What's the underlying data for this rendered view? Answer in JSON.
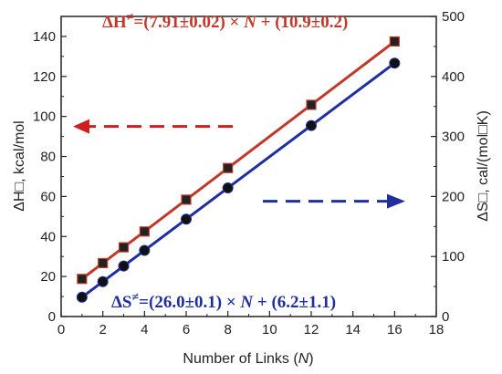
{
  "chart_data": {
    "type": "scatter",
    "x": [
      1,
      2,
      3,
      4,
      6,
      8,
      12,
      16
    ],
    "xlabel": "Number of Links (N)",
    "xlabel_main": "Number of Links (",
    "xlabel_var": "N",
    "xlabel_close": ")",
    "xlim": [
      0,
      18
    ],
    "xticks": [
      0,
      2,
      4,
      6,
      8,
      10,
      12,
      14,
      16,
      18
    ],
    "ylabel_left": "ΔH□, kcal/mol",
    "ylim_left": [
      0,
      150
    ],
    "yticks_left": [
      0,
      20,
      40,
      60,
      80,
      100,
      120,
      140
    ],
    "ylabel_right": "ΔS□, cal/(mol□K)",
    "ylim_right": [
      0,
      500
    ],
    "yticks_right": [
      0,
      100,
      200,
      300,
      400,
      500
    ],
    "series": [
      {
        "axis": "left",
        "marker": "square",
        "color": "#c0392b",
        "values": [
          18.8,
          26.7,
          34.6,
          42.5,
          58.4,
          74.2,
          105.8,
          137.5
        ],
        "fit": {
          "slope": 7.91,
          "intercept": 10.9
        },
        "equation": {
          "prefix": "ΔH",
          "sup": "≠",
          "body": "=(7.91±0.02) × ",
          "var": "N",
          "tail": " + (10.9±0.2)"
        }
      },
      {
        "axis": "right",
        "marker": "circle",
        "color": "#1f2f9e",
        "values": [
          32.2,
          58.2,
          84.2,
          110.2,
          162.2,
          214.2,
          318.2,
          422.2
        ],
        "fit": {
          "slope": 26.0,
          "intercept": 6.2
        },
        "equation": {
          "prefix": "ΔS",
          "sup": "≠",
          "body": "=(26.0±0.1) × ",
          "var": "N",
          "tail": " + (6.2±1.1)"
        }
      }
    ],
    "annotations": [
      {
        "type": "dashed-arrow",
        "direction": "left",
        "color": "#cc1f1f",
        "refers_to": "left axis"
      },
      {
        "type": "dashed-arrow",
        "direction": "right",
        "color": "#1f2f9e",
        "refers_to": "right axis"
      }
    ]
  }
}
